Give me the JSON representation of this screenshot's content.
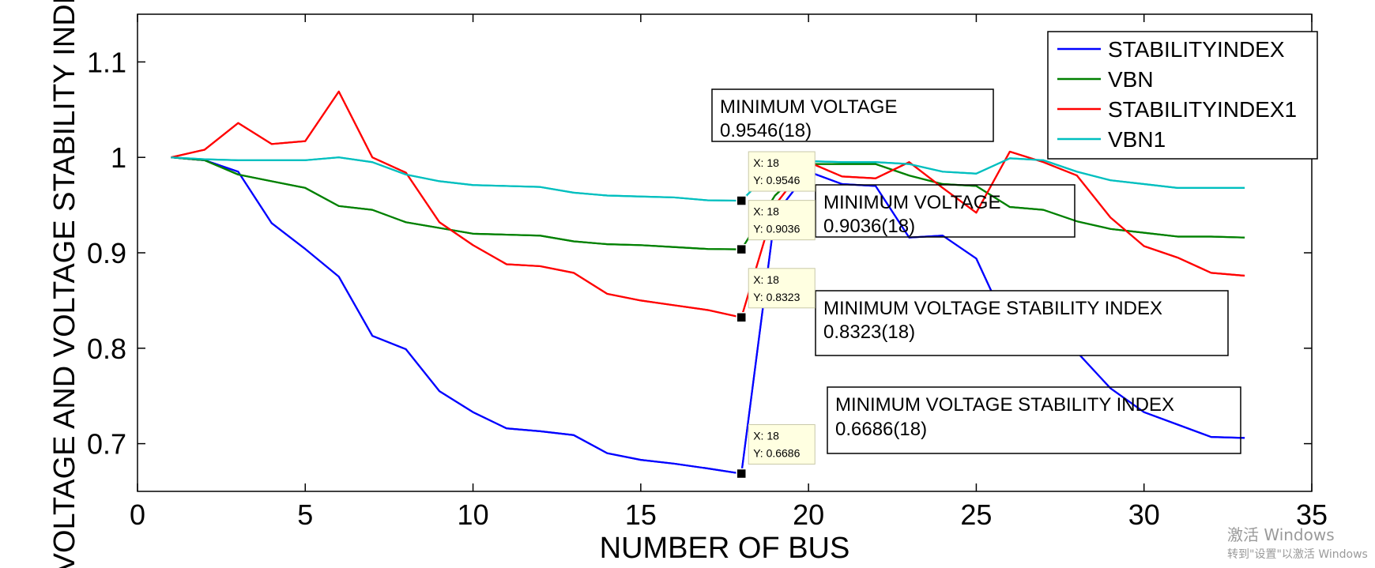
{
  "chart_data": {
    "type": "line",
    "xlabel": "NUMBER OF BUS",
    "ylabel": "VOLTAGE AND VOLTAGE STABILITY INDEX",
    "xlim": [
      0,
      35
    ],
    "ylim": [
      0.65,
      1.15
    ],
    "xticks": [
      "0",
      "5",
      "10",
      "15",
      "20",
      "25",
      "30",
      "35"
    ],
    "yticks": [
      "0.7",
      "0.8",
      "0.9",
      "1",
      "1.1"
    ],
    "grid": false,
    "legend_position": "top-right",
    "x": [
      1,
      2,
      3,
      4,
      5,
      6,
      7,
      8,
      9,
      10,
      11,
      12,
      13,
      14,
      15,
      16,
      17,
      18,
      19,
      20,
      21,
      22,
      23,
      24,
      25,
      26,
      27,
      28,
      29,
      30,
      31,
      32,
      33
    ],
    "series": [
      {
        "name": "STABILITYINDEX",
        "color": "#0000ff",
        "values": [
          1.0,
          0.997,
          0.985,
          0.931,
          0.904,
          0.875,
          0.813,
          0.799,
          0.755,
          0.733,
          0.716,
          0.713,
          0.709,
          0.69,
          0.683,
          0.679,
          0.674,
          0.6686,
          0.94,
          0.985,
          0.972,
          0.97,
          0.916,
          0.918,
          0.894,
          0.818,
          0.805,
          0.796,
          0.758,
          0.733,
          0.72,
          0.707,
          0.706
        ]
      },
      {
        "name": "VBN",
        "color": "#008000",
        "values": [
          1.0,
          0.997,
          0.982,
          0.975,
          0.968,
          0.949,
          0.945,
          0.932,
          0.926,
          0.92,
          0.919,
          0.918,
          0.912,
          0.909,
          0.908,
          0.906,
          0.904,
          0.9036,
          0.96,
          0.993,
          0.993,
          0.993,
          0.981,
          0.972,
          0.97,
          0.948,
          0.945,
          0.933,
          0.925,
          0.921,
          0.917,
          0.917,
          0.916
        ]
      },
      {
        "name": "STABILITYINDEX1",
        "color": "#ff0000",
        "values": [
          1.0,
          1.008,
          1.036,
          1.014,
          1.017,
          1.069,
          1.0,
          0.984,
          0.932,
          0.908,
          0.888,
          0.886,
          0.879,
          0.857,
          0.85,
          0.845,
          0.84,
          0.8323,
          0.95,
          0.995,
          0.98,
          0.978,
          0.995,
          0.968,
          0.942,
          1.006,
          0.995,
          0.981,
          0.937,
          0.907,
          0.895,
          0.879,
          0.876
        ]
      },
      {
        "name": "VBN1",
        "color": "#00bfbf",
        "values": [
          1.0,
          0.998,
          0.997,
          0.997,
          0.997,
          1.0,
          0.995,
          0.982,
          0.975,
          0.971,
          0.97,
          0.969,
          0.963,
          0.96,
          0.959,
          0.958,
          0.955,
          0.9546,
          0.99,
          0.996,
          0.995,
          0.995,
          0.993,
          0.985,
          0.983,
          0.999,
          0.997,
          0.985,
          0.976,
          0.972,
          0.968,
          0.968,
          0.968
        ]
      }
    ],
    "datatips": [
      {
        "x": 18,
        "y": 0.9546,
        "label_x": "X: 18",
        "label_y": "Y: 0.9546"
      },
      {
        "x": 18,
        "y": 0.9036,
        "label_x": "X: 18",
        "label_y": "Y: 0.9036"
      },
      {
        "x": 18,
        "y": 0.8323,
        "label_x": "X: 18",
        "label_y": "Y: 0.8323"
      },
      {
        "x": 18,
        "y": 0.6686,
        "label_x": "X: 18",
        "label_y": "Y: 0.6686"
      }
    ],
    "annotations": [
      {
        "line1": "MINIMUM VOLTAGE",
        "line2": "0.9546(18)"
      },
      {
        "line1": "MINIMUM VOLTAGE",
        "line2": "0.9036(18)"
      },
      {
        "line1": "MINIMUM VOLTAGE STABILITY INDEX",
        "line2": "0.8323(18)"
      },
      {
        "line1": "MINIMUM VOLTAGE STABILITY INDEX",
        "line2": "0.6686(18)"
      }
    ]
  },
  "watermark": {
    "line1": "激活 Windows",
    "line2": "转到\"设置\"以激活 Windows"
  }
}
